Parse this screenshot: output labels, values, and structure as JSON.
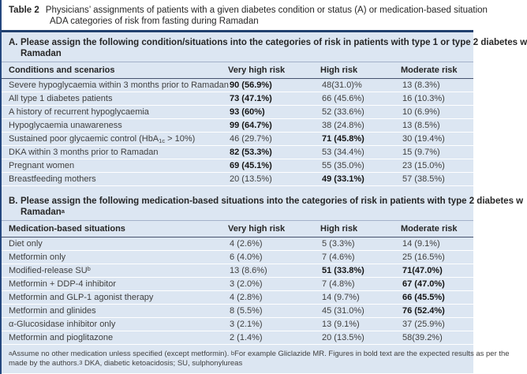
{
  "title": {
    "label": "Table 2",
    "line1": "Physicians’ assignments of patients with a given diabetes condition or status (A) or medication-based situation",
    "line2": "ADA categories of risk from fasting during Ramadan"
  },
  "colors": {
    "body_bg": "#dce6f2",
    "rule_dark": "#20406e",
    "row_separator": "#ffffff",
    "text": "#3f3f3f",
    "text_bold": "#141414"
  },
  "sections": [
    {
      "prefix": "A.",
      "heading_line1": "Please assign the following condition/situations into the categories of risk in patients with type 1 or type 2 diabetes w",
      "heading_line2_parts": [
        {
          "t": "text",
          "v": "Ramadan"
        }
      ],
      "columns": [
        "Conditions and scenarios",
        "Very high risk",
        "High risk",
        "Moderate risk"
      ],
      "rows": [
        {
          "label_parts": [
            {
              "t": "text",
              "v": "Severe hypoglycaemia within 3 months prior to Ramadan"
            }
          ],
          "cells": [
            {
              "text": "90 (56.9%)",
              "bold": true
            },
            {
              "text": "48(31.0)%",
              "bold": false
            },
            {
              "text": "13 (8.3%)",
              "bold": false
            }
          ]
        },
        {
          "label_parts": [
            {
              "t": "text",
              "v": "All type 1 diabetes patients"
            }
          ],
          "cells": [
            {
              "text": "73 (47.1%)",
              "bold": true
            },
            {
              "text": "66 (45.6%)",
              "bold": false
            },
            {
              "text": "16 (10.3%)",
              "bold": false
            }
          ]
        },
        {
          "label_parts": [
            {
              "t": "text",
              "v": "A history of recurrent hypoglycaemia"
            }
          ],
          "cells": [
            {
              "text": "93 (60%)",
              "bold": true
            },
            {
              "text": "52 (33.6%)",
              "bold": false
            },
            {
              "text": "10 (6.9%)",
              "bold": false
            }
          ]
        },
        {
          "label_parts": [
            {
              "t": "text",
              "v": "Hypoglycaemia unawareness"
            }
          ],
          "cells": [
            {
              "text": "99 (64.7%)",
              "bold": true
            },
            {
              "text": "38 (24.8%)",
              "bold": false
            },
            {
              "text": "13 (8.5%)",
              "bold": false
            }
          ]
        },
        {
          "label_parts": [
            {
              "t": "text",
              "v": "Sustained poor glycaemic control (HbA"
            },
            {
              "t": "sub",
              "v": "1c"
            },
            {
              "t": "text",
              "v": " > 10%)"
            }
          ],
          "cells": [
            {
              "text": "46 (29.7%)",
              "bold": false
            },
            {
              "text": "71 (45.8%)",
              "bold": true
            },
            {
              "text": "30 (19.4%)",
              "bold": false
            }
          ]
        },
        {
          "label_parts": [
            {
              "t": "text",
              "v": "DKA within 3 months prior to Ramadan"
            }
          ],
          "cells": [
            {
              "text": "82 (53.3%)",
              "bold": true
            },
            {
              "text": "53 (34.4%)",
              "bold": false
            },
            {
              "text": "15 (9.7%)",
              "bold": false
            }
          ]
        },
        {
          "label_parts": [
            {
              "t": "text",
              "v": "Pregnant women"
            }
          ],
          "cells": [
            {
              "text": "69 (45.1%)",
              "bold": true
            },
            {
              "text": "55 (35.0%)",
              "bold": false
            },
            {
              "text": "23 (15.0%)",
              "bold": false
            }
          ]
        },
        {
          "label_parts": [
            {
              "t": "text",
              "v": "Breastfeeding mothers"
            }
          ],
          "cells": [
            {
              "text": "20 (13.5%)",
              "bold": false
            },
            {
              "text": "49 (33.1%)",
              "bold": true
            },
            {
              "text": "57 (38.5%)",
              "bold": false
            }
          ]
        }
      ]
    },
    {
      "prefix": "B.",
      "heading_line1": "Please assign the following medication-based situations into the categories of risk in patients with type 2 diabetes w",
      "heading_line2_parts": [
        {
          "t": "text",
          "v": "Ramadan"
        },
        {
          "t": "sup",
          "v": "a"
        }
      ],
      "columns": [
        "Medication-based situations",
        "Very high risk",
        "High risk",
        "Moderate risk"
      ],
      "rows": [
        {
          "label_parts": [
            {
              "t": "text",
              "v": "Diet only"
            }
          ],
          "cells": [
            {
              "text": "4 (2.6%)",
              "bold": false
            },
            {
              "text": "5 (3.3%)",
              "bold": false
            },
            {
              "text": "14 (9.1%)",
              "bold": false
            }
          ]
        },
        {
          "label_parts": [
            {
              "t": "text",
              "v": "Metformin only"
            }
          ],
          "cells": [
            {
              "text": "6 (4.0%)",
              "bold": false
            },
            {
              "text": "7 (4.6%)",
              "bold": false
            },
            {
              "text": "25 (16.5%)",
              "bold": false
            }
          ]
        },
        {
          "label_parts": [
            {
              "t": "text",
              "v": "Modified-release SU"
            },
            {
              "t": "sup",
              "v": "b"
            }
          ],
          "cells": [
            {
              "text": "13 (8.6%)",
              "bold": false
            },
            {
              "text": "51 (33.8%)",
              "bold": true
            },
            {
              "text": "71(47.0%)",
              "bold": true
            }
          ]
        },
        {
          "label_parts": [
            {
              "t": "text",
              "v": "Metformin + DDP-4 inhibitor"
            }
          ],
          "cells": [
            {
              "text": "3 (2.0%)",
              "bold": false
            },
            {
              "text": "7 (4.8%)",
              "bold": false
            },
            {
              "text": "67 (47.0%)",
              "bold": true
            }
          ]
        },
        {
          "label_parts": [
            {
              "t": "text",
              "v": "Metformin and GLP-1 agonist therapy"
            }
          ],
          "cells": [
            {
              "text": "4 (2.8%)",
              "bold": false
            },
            {
              "text": "14 (9.7%)",
              "bold": false
            },
            {
              "text": "66 (45.5%)",
              "bold": true
            }
          ]
        },
        {
          "label_parts": [
            {
              "t": "text",
              "v": "Metformin and glinides"
            }
          ],
          "cells": [
            {
              "text": "8 (5.5%)",
              "bold": false
            },
            {
              "text": "45 (31.0%)",
              "bold": false
            },
            {
              "text": "76 (52.4%)",
              "bold": true
            }
          ]
        },
        {
          "label_parts": [
            {
              "t": "text",
              "v": "α-Glucosidase inhibitor only"
            }
          ],
          "cells": [
            {
              "text": "3 (2.1%)",
              "bold": false
            },
            {
              "text": "13 (9.1%)",
              "bold": false
            },
            {
              "text": "37 (25.9%)",
              "bold": false
            }
          ]
        },
        {
          "label_parts": [
            {
              "t": "text",
              "v": "Metformin and pioglitazone"
            }
          ],
          "cells": [
            {
              "text": "2 (1.4%)",
              "bold": false
            },
            {
              "text": "20 (13.5%)",
              "bold": false
            },
            {
              "text": "58(39.2%)",
              "bold": false
            }
          ]
        }
      ]
    }
  ],
  "footnotes": {
    "line1_parts": [
      {
        "t": "sup",
        "v": "a"
      },
      {
        "t": "text",
        "v": "Assume no other medication unless specified (except metformin).  "
      },
      {
        "t": "sup",
        "v": "b"
      },
      {
        "t": "text",
        "v": "For example Gliclazide MR.  Figures in bold text are the expected results as per the"
      }
    ],
    "line2_parts": [
      {
        "t": "text",
        "v": "made by the authors."
      },
      {
        "t": "sup",
        "v": "3"
      },
      {
        "t": "text",
        "v": "  DKA, diabetic ketoacidosis; SU, sulphonylureas"
      }
    ]
  }
}
